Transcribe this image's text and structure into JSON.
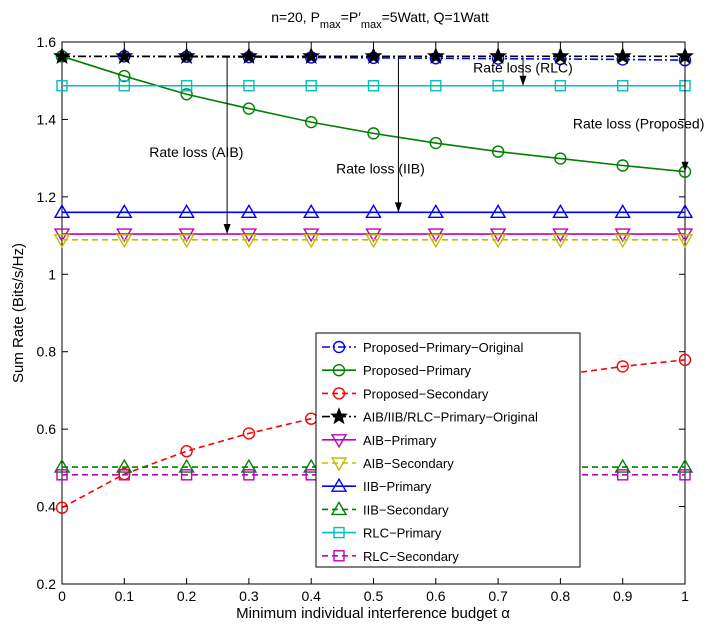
{
  "chart_data": {
    "type": "line",
    "title": "n=20, Pₘₐₓ=P′ₘₐₓ=5Watt, Q=1Watt",
    "xlabel": "Minimum individual interference budget α",
    "ylabel": "Sum Rate (Bits/s/Hz)",
    "xlim": [
      0,
      1
    ],
    "ylim": [
      0.2,
      1.6
    ],
    "xticks": [
      "0",
      "0.1",
      "0.2",
      "0.3",
      "0.4",
      "0.5",
      "0.6",
      "0.7",
      "0.8",
      "0.9",
      "1"
    ],
    "yticks": [
      "0.2",
      "0.4",
      "0.6",
      "0.8",
      "1",
      "1.2",
      "1.4",
      "1.6"
    ],
    "grid": false,
    "legend_position": "center-right",
    "x": [
      0,
      0.1,
      0.2,
      0.3,
      0.4,
      0.5,
      0.6,
      0.7,
      0.8,
      0.9,
      1
    ],
    "series": [
      {
        "name": "Proposed−Primary−Original",
        "color": "#0000ff",
        "linestyle": "dashdot",
        "marker": "circle",
        "values": [
          1.563,
          1.563,
          1.562,
          1.561,
          1.56,
          1.559,
          1.558,
          1.557,
          1.556,
          1.555,
          1.553
        ]
      },
      {
        "name": "Proposed−Primary",
        "color": "#008000",
        "linestyle": "solid",
        "marker": "circle",
        "values": [
          1.563,
          1.512,
          1.465,
          1.428,
          1.393,
          1.364,
          1.339,
          1.317,
          1.299,
          1.281,
          1.265
        ]
      },
      {
        "name": "Proposed−Secondary",
        "color": "#ff0000",
        "linestyle": "dashed",
        "marker": "circle",
        "values": [
          0.397,
          0.484,
          0.543,
          0.589,
          0.627,
          0.661,
          0.69,
          0.716,
          0.74,
          0.762,
          0.779
        ]
      },
      {
        "name": "AIB/IIB/RLC−Primary−Original",
        "color": "#000000",
        "linestyle": "dashdot",
        "marker": "star",
        "values": [
          1.563,
          1.563,
          1.563,
          1.563,
          1.563,
          1.563,
          1.563,
          1.563,
          1.563,
          1.563,
          1.563
        ]
      },
      {
        "name": "AIB−Primary",
        "color": "#bf00bf",
        "linestyle": "solid",
        "marker": "triangle-down",
        "values": [
          1.104,
          1.104,
          1.104,
          1.104,
          1.104,
          1.104,
          1.104,
          1.104,
          1.104,
          1.104,
          1.104
        ]
      },
      {
        "name": "AIB−Secondary",
        "color": "#bfbf00",
        "linestyle": "dashed",
        "marker": "triangle-down",
        "values": [
          1.089,
          1.089,
          1.089,
          1.089,
          1.089,
          1.089,
          1.089,
          1.089,
          1.089,
          1.089,
          1.089
        ]
      },
      {
        "name": "IIB−Primary",
        "color": "#0000ff",
        "linestyle": "solid",
        "marker": "triangle-up",
        "values": [
          1.16,
          1.16,
          1.16,
          1.16,
          1.16,
          1.16,
          1.16,
          1.16,
          1.16,
          1.16,
          1.16
        ]
      },
      {
        "name": "IIB−Secondary",
        "color": "#008000",
        "linestyle": "dashed",
        "marker": "triangle-up",
        "values": [
          0.502,
          0.502,
          0.502,
          0.502,
          0.502,
          0.502,
          0.502,
          0.502,
          0.502,
          0.502,
          0.502
        ]
      },
      {
        "name": "RLC−Primary",
        "color": "#00bfbf",
        "linestyle": "solid",
        "marker": "square",
        "values": [
          1.487,
          1.487,
          1.487,
          1.487,
          1.487,
          1.487,
          1.487,
          1.487,
          1.487,
          1.487,
          1.487
        ]
      },
      {
        "name": "RLC−Secondary",
        "color": "#bf00bf",
        "linestyle": "dashed",
        "marker": "square",
        "values": [
          0.482,
          0.482,
          0.482,
          0.482,
          0.482,
          0.482,
          0.482,
          0.482,
          0.482,
          0.482,
          0.482
        ]
      }
    ],
    "annotations": [
      {
        "text": "Rate loss (RLC)",
        "text_at": [
          0.66,
          1.521
        ],
        "arrow_x": 0.74,
        "arrow_from": 1.563,
        "arrow_to": 1.487
      },
      {
        "text": "Rate loss (Proposed)",
        "text_at": [
          0.82,
          1.377
        ],
        "arrow_x": 1.0,
        "arrow_from": 1.552,
        "arrow_to": 1.265
      },
      {
        "text": "Rate loss (AIB)",
        "text_at": [
          0.14,
          1.303
        ],
        "arrow_x": 0.265,
        "arrow_from": 1.563,
        "arrow_to": 1.104
      },
      {
        "text": "Rate loss (IIB)",
        "text_at": [
          0.44,
          1.26
        ],
        "arrow_x": 0.54,
        "arrow_from": 1.563,
        "arrow_to": 1.16
      }
    ]
  }
}
